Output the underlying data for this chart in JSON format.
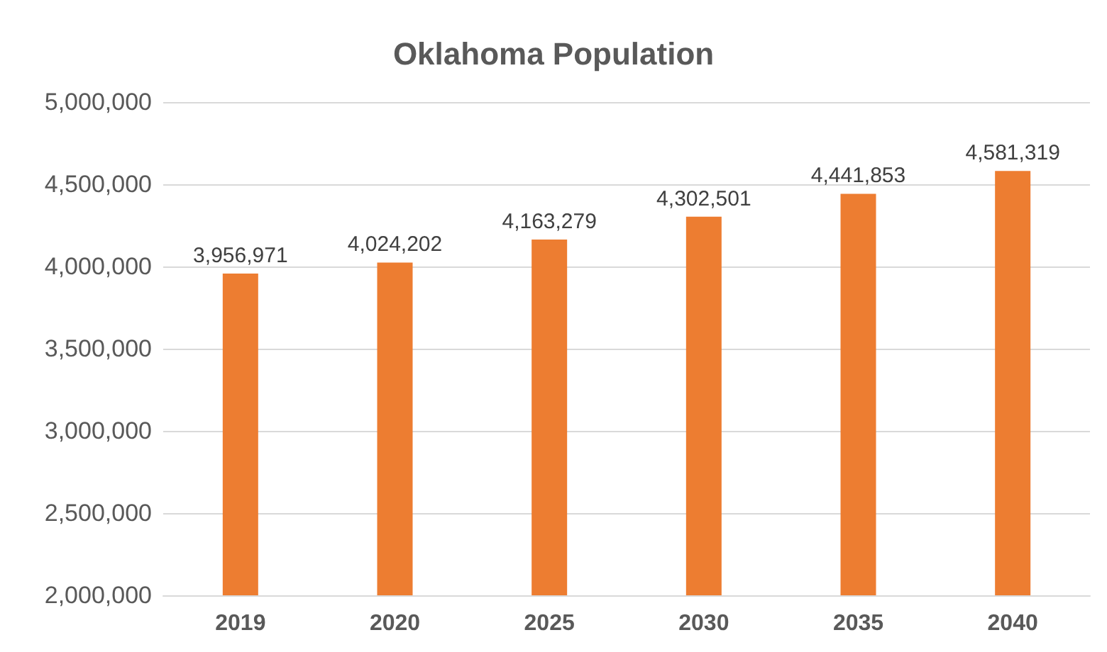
{
  "chart_data": {
    "type": "bar",
    "title": "Oklahoma Population",
    "categories": [
      "2019",
      "2020",
      "2025",
      "2030",
      "2035",
      "2040"
    ],
    "values": [
      3956971,
      4024202,
      4163279,
      4302501,
      4441853,
      4581319
    ],
    "value_labels": [
      "3,956,971",
      "4,024,202",
      "4,163,279",
      "4,302,501",
      "4,441,853",
      "4,581,319"
    ],
    "color": "#ed7d31",
    "ylim": [
      2000000,
      5000000
    ],
    "yticks": [
      {
        "value": 2000000,
        "label": "2,000,000"
      },
      {
        "value": 2500000,
        "label": "2,500,000"
      },
      {
        "value": 3000000,
        "label": "3,000,000"
      },
      {
        "value": 3500000,
        "label": "3,500,000"
      },
      {
        "value": 4000000,
        "label": "4,000,000"
      },
      {
        "value": 4500000,
        "label": "4,500,000"
      },
      {
        "value": 5000000,
        "label": "5,000,000"
      }
    ],
    "grid": "y"
  }
}
